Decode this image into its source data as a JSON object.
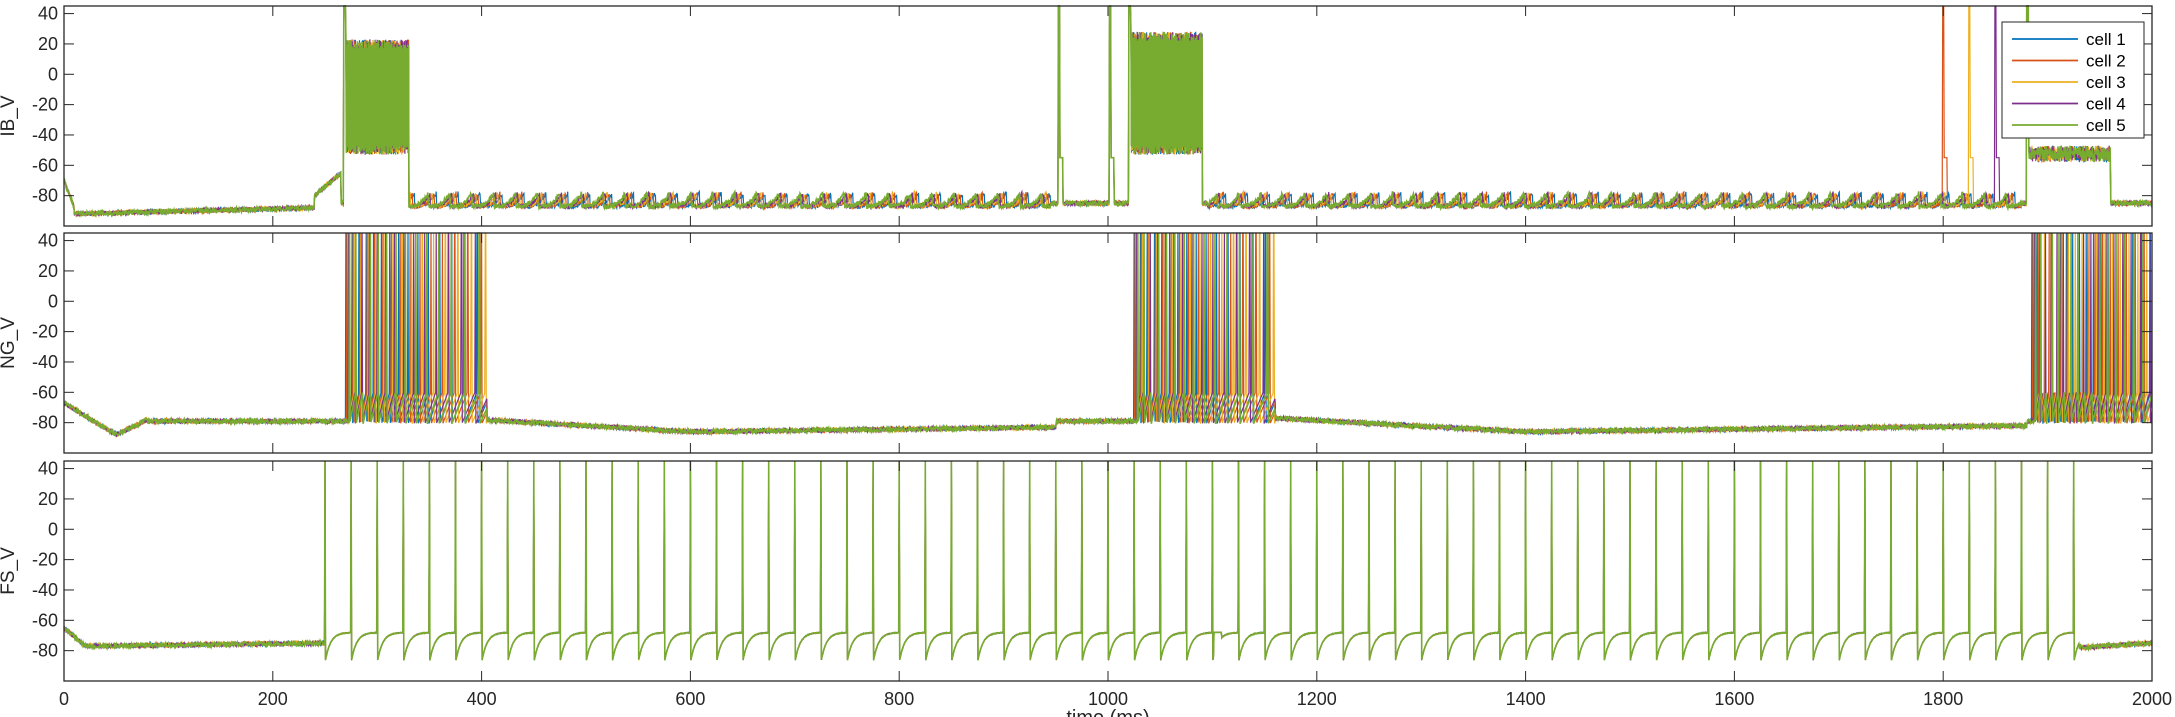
{
  "chart_data": {
    "type": "line",
    "xlabel": "time (ms)",
    "xlim": [
      0,
      2000
    ],
    "xticks": [
      0,
      200,
      400,
      600,
      800,
      1000,
      1200,
      1400,
      1600,
      1800,
      2000
    ],
    "ylim": [
      -100,
      45
    ],
    "yticks": [
      40,
      20,
      0,
      -20,
      -40,
      -60,
      -80
    ],
    "legend": {
      "placement": "top-right",
      "entries": [
        "cell 1",
        "cell 2",
        "cell 3",
        "cell 4",
        "cell 5"
      ]
    },
    "colors": [
      "#0072BD",
      "#D95319",
      "#EDB120",
      "#7E2F8E",
      "#77AC30"
    ],
    "panels": [
      {
        "ylabel": "IB_V",
        "rest": -85,
        "segments": [
          {
            "t": [
              0,
              10
            ],
            "v": [
              -70,
              -88
            ]
          },
          {
            "t": [
              10,
              240
            ],
            "v": [
              -92,
              -88
            ]
          },
          {
            "t": [
              240,
              265
            ],
            "v": [
              -80,
              -65
            ]
          }
        ],
        "bursts": [
          {
            "t": [
              268,
              330
            ],
            "high": 20,
            "low": -50,
            "peak": 45
          },
          {
            "t": [
              1020,
              1090
            ],
            "high": 25,
            "low": -50,
            "peak": 45
          },
          {
            "t": [
              1880,
              1960
            ],
            "high": -50,
            "low": -55,
            "peak": 45
          }
        ],
        "spikes": [
          {
            "t": 953,
            "peak": 45
          },
          {
            "t": 1002,
            "peak": 45
          },
          {
            "t": 1800,
            "peak": 45,
            "cell": 2
          },
          {
            "t": 1825,
            "peak": 45,
            "cell": 3
          },
          {
            "t": 1850,
            "peak": 45,
            "cell": 4
          }
        ],
        "oscillation": {
          "period_ms": 21,
          "amplitude": 9
        }
      },
      {
        "ylabel": "NG_V",
        "rest": -79,
        "segments": [
          {
            "t": [
              0,
              50
            ],
            "v": [
              -67,
              -88
            ]
          },
          {
            "t": [
              50,
              80
            ],
            "v": [
              -88,
              -78
            ]
          },
          {
            "t": [
              400,
              600
            ],
            "v": [
              -78,
              -86
            ]
          },
          {
            "t": [
              600,
              950
            ],
            "v": [
              -86,
              -83
            ]
          },
          {
            "t": [
              1160,
              1400
            ],
            "v": [
              -77,
              -86
            ]
          },
          {
            "t": [
              1400,
              1880
            ],
            "v": [
              -86,
              -82
            ]
          }
        ],
        "spike_trains": [
          {
            "t": [
              270,
              405
            ],
            "isi_start": 6,
            "isi_end": 14,
            "peak": 45,
            "trough": -82
          },
          {
            "t": [
              1025,
              1160
            ],
            "isi_start": 6,
            "isi_end": 14,
            "peak": 45,
            "trough": -82
          },
          {
            "t": [
              1885,
              2000
            ],
            "isi_start": 5,
            "isi_end": 9,
            "peak": 45,
            "trough": -82
          }
        ]
      },
      {
        "ylabel": "FS_V",
        "rest": -75,
        "segments": [
          {
            "t": [
              0,
              20
            ],
            "v": [
              -65,
              -77
            ]
          },
          {
            "t": [
              20,
              250
            ],
            "v": [
              -77,
              -75
            ]
          },
          {
            "t": [
              1930,
              2000
            ],
            "v": [
              -78,
              -75
            ]
          }
        ],
        "regular_spikes": {
          "t": [
            250,
            1930
          ],
          "period_ms": 25,
          "peak": 45,
          "trough": -88
        },
        "bump": {
          "t": 1105,
          "v": -68
        }
      }
    ]
  }
}
